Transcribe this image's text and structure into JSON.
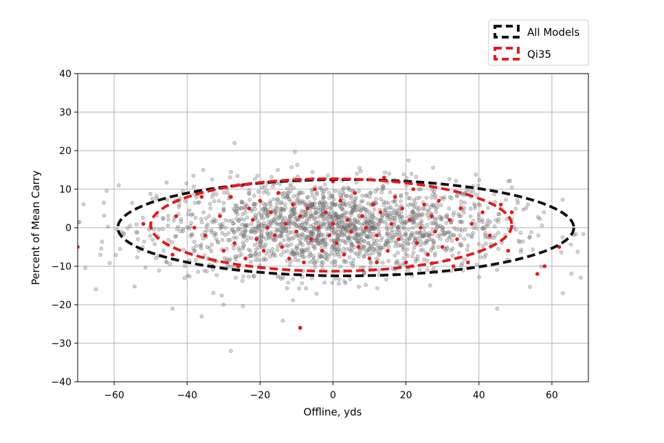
{
  "chart_data": {
    "type": "scatter",
    "title": "",
    "xlabel": "Offline, yds",
    "ylabel": "Percent of Mean Carry",
    "xlim": [
      -70,
      70
    ],
    "ylim": [
      -40,
      40
    ],
    "xticks": [
      -60,
      -40,
      -20,
      0,
      20,
      40,
      60
    ],
    "yticks": [
      -40,
      -30,
      -20,
      -10,
      0,
      10,
      20,
      30,
      40
    ],
    "xtick_labels": [
      "−60",
      "−40",
      "−20",
      "0",
      "20",
      "40",
      "60"
    ],
    "ytick_labels": [
      "−40",
      "−30",
      "−20",
      "−10",
      "0",
      "10",
      "20",
      "30",
      "40"
    ],
    "grid": true,
    "legend_position": "top-right (above plot)",
    "series": [
      {
        "name": "All Models",
        "kind": "scatter",
        "color": "#808080",
        "approx_count": 1800,
        "x_mean": 0,
        "x_std": 24,
        "y_mean": 0,
        "y_std": 6,
        "outliers": [
          [
            -27,
            22
          ],
          [
            -28,
            -32
          ],
          [
            -9,
            -26
          ],
          [
            -30,
            -20
          ],
          [
            -36,
            -23
          ],
          [
            -44,
            -21
          ],
          [
            45,
            -21
          ],
          [
            -65,
            -16
          ],
          [
            63,
            -17
          ]
        ]
      },
      {
        "name": "Qi35",
        "kind": "scatter",
        "color": "#e41a1c",
        "points": [
          [
            -70,
            -5
          ],
          [
            -52,
            1
          ],
          [
            -43,
            3
          ],
          [
            -38,
            0
          ],
          [
            -35,
            -2
          ],
          [
            -33,
            -10
          ],
          [
            -31,
            3
          ],
          [
            -30,
            -6
          ],
          [
            -28,
            8
          ],
          [
            -27,
            -4
          ],
          [
            -25,
            11
          ],
          [
            -24,
            -8
          ],
          [
            -23,
            5
          ],
          [
            -22,
            2
          ],
          [
            -21,
            -3
          ],
          [
            -20,
            7
          ],
          [
            -19,
            -6
          ],
          [
            -18,
            0
          ],
          [
            -17,
            4
          ],
          [
            -16,
            -2
          ],
          [
            -15,
            9
          ],
          [
            -14,
            -5
          ],
          [
            -13,
            1
          ],
          [
            -12,
            -8
          ],
          [
            -11,
            6
          ],
          [
            -10,
            -1
          ],
          [
            -9,
            -26
          ],
          [
            -9,
            3
          ],
          [
            -8,
            -9
          ],
          [
            -7,
            5
          ],
          [
            -6,
            -3
          ],
          [
            -5,
            10
          ],
          [
            -4,
            0
          ],
          [
            -3,
            -6
          ],
          [
            -2,
            4
          ],
          [
            -1,
            -2
          ],
          [
            0,
            1
          ],
          [
            0,
            12
          ],
          [
            1,
            -4
          ],
          [
            2,
            7
          ],
          [
            3,
            -7
          ],
          [
            4,
            2
          ],
          [
            5,
            -1
          ],
          [
            6,
            9
          ],
          [
            7,
            -5
          ],
          [
            8,
            3
          ],
          [
            9,
            0
          ],
          [
            10,
            -8
          ],
          [
            11,
            6
          ],
          [
            12,
            -2
          ],
          [
            13,
            4
          ],
          [
            14,
            13
          ],
          [
            15,
            -6
          ],
          [
            16,
            1
          ],
          [
            17,
            8
          ],
          [
            18,
            -3
          ],
          [
            19,
            5
          ],
          [
            20,
            -9
          ],
          [
            21,
            2
          ],
          [
            22,
            10
          ],
          [
            23,
            -4
          ],
          [
            24,
            0
          ],
          [
            25,
            6
          ],
          [
            26,
            -7
          ],
          [
            27,
            3
          ],
          [
            28,
            -1
          ],
          [
            29,
            7
          ],
          [
            30,
            -5
          ],
          [
            32,
            2
          ],
          [
            34,
            -3
          ],
          [
            35,
            5
          ],
          [
            37,
            -9
          ],
          [
            38,
            1
          ],
          [
            41,
            4
          ],
          [
            43,
            -2
          ],
          [
            46,
            6
          ],
          [
            48,
            -6
          ],
          [
            49,
            4
          ],
          [
            56,
            -12
          ],
          [
            58,
            -10
          ],
          [
            62,
            -5
          ],
          [
            -44,
            -7
          ],
          [
            -26,
            -10
          ],
          [
            33,
            -10
          ],
          [
            12,
            -9
          ],
          [
            -36,
            8
          ]
        ]
      },
      {
        "name": "All Models",
        "kind": "ellipse",
        "color": "#111111",
        "cx": 3.5,
        "cy": 0,
        "rx": 62.5,
        "ry": 12.5
      },
      {
        "name": "Qi35",
        "kind": "ellipse",
        "color": "#e41a1c",
        "cx": -0.5,
        "cy": 0.7,
        "rx": 49.5,
        "ry": 12.0
      }
    ]
  }
}
